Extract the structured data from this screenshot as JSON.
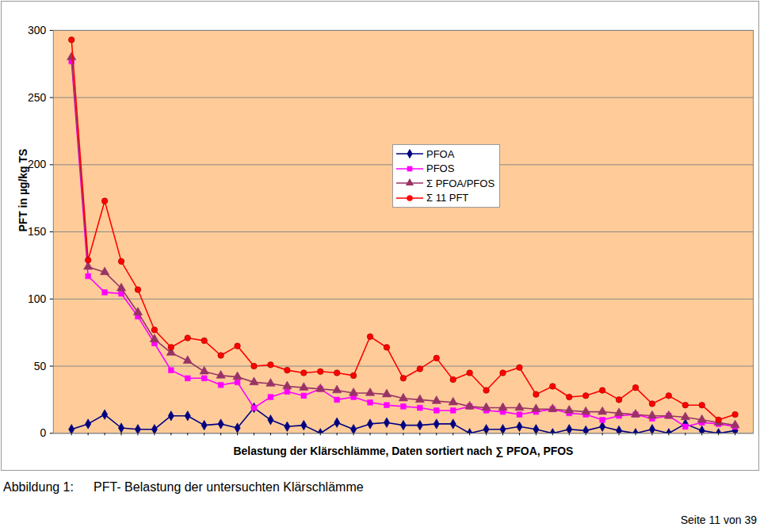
{
  "chart_data": {
    "type": "line",
    "x_label": "Belastung der Klärschlämme, Daten sortiert nach ∑ PFOA, PFOS",
    "y_label": "PFT in µg/kg TS",
    "annotations": [
      "Abbildung 1:",
      "PFT- Belastung der untersuchten Klärschlämme",
      "Seite 11 von 39"
    ],
    "categories": [
      null,
      null,
      null,
      null,
      null,
      null,
      null,
      null,
      null,
      null,
      null,
      null,
      null,
      null,
      null,
      null,
      null,
      null,
      null,
      null,
      null,
      null,
      null,
      null,
      null,
      null,
      null,
      null,
      null,
      null,
      null,
      null,
      null,
      null,
      null,
      null,
      null,
      null,
      null,
      null,
      null
    ],
    "ylim": [
      0,
      300
    ],
    "yticks": [
      0,
      50,
      100,
      150,
      200,
      250,
      300
    ],
    "grid": true,
    "legend": "top-right",
    "tick_labels": "y",
    "series": [
      {
        "name": "PFOA",
        "color": "#000080",
        "marker": "diamond",
        "values": [
          3,
          7,
          14,
          4,
          3,
          3,
          13,
          13,
          6,
          7,
          4,
          19,
          10,
          5,
          6,
          0,
          8,
          3,
          7,
          8,
          6,
          6,
          7,
          7,
          0,
          3,
          3,
          5,
          3,
          0,
          3,
          2,
          5,
          2,
          0,
          3,
          0,
          7,
          2,
          0,
          2
        ]
      },
      {
        "name": "PFOS",
        "color": "#FF00FF",
        "marker": "square",
        "values": [
          277,
          117,
          105,
          104,
          87,
          67,
          47,
          41,
          41,
          36,
          38,
          19,
          27,
          31,
          28,
          33,
          25,
          27,
          23,
          21,
          20,
          19,
          17,
          17,
          20,
          17,
          16,
          14,
          16,
          18,
          15,
          14,
          10,
          13,
          14,
          11,
          13,
          5,
          8,
          7,
          5
        ]
      },
      {
        "name": "Σ PFOA/PFOS",
        "color": "#993366",
        "marker": "triangle",
        "values": [
          280,
          124,
          120,
          108,
          90,
          70,
          60,
          54,
          46,
          43,
          42,
          38,
          37,
          35,
          34,
          33,
          32,
          30,
          30,
          29,
          26,
          25,
          24,
          23,
          20,
          19,
          19,
          19,
          18,
          18,
          17,
          16,
          16,
          15,
          14,
          13,
          13,
          12,
          10,
          8,
          6
        ]
      },
      {
        "name": "Σ 11 PFT",
        "color": "#FF0000",
        "marker": "circle",
        "values": [
          293,
          129,
          173,
          128,
          107,
          77,
          64,
          71,
          69,
          58,
          65,
          50,
          51,
          47,
          45,
          46,
          45,
          43,
          72,
          64,
          41,
          48,
          56,
          40,
          45,
          32,
          45,
          49,
          29,
          35,
          27,
          28,
          32,
          25,
          34,
          22,
          28,
          21,
          21,
          10,
          14
        ]
      }
    ]
  }
}
